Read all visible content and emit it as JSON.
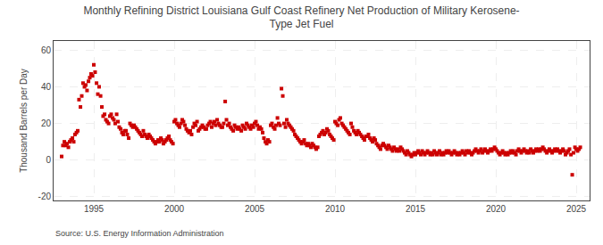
{
  "chart_data": {
    "type": "scatter",
    "title": "Monthly Refining District Louisiana Gulf Coast Refinery Net Production of Military Kerosene-\nType Jet Fuel",
    "ylabel": "Thousand Barrels per Day",
    "source": "Source: U.S. Energy Information Administration",
    "color": "#cc0000",
    "marker": "square",
    "grid": true,
    "xlim": [
      1992.5,
      2025.83
    ],
    "ylim": [
      -22,
      65
    ],
    "yticks": [
      -20,
      0,
      20,
      40,
      60
    ],
    "xticks": [
      1995,
      2000,
      2005,
      2010,
      2015,
      2020,
      2025
    ],
    "x": [
      1993.0,
      1993.08,
      1993.17,
      1993.25,
      1993.33,
      1993.42,
      1993.5,
      1993.58,
      1993.67,
      1993.75,
      1993.83,
      1993.92,
      1994.0,
      1994.08,
      1994.17,
      1994.25,
      1994.33,
      1994.42,
      1994.5,
      1994.58,
      1994.67,
      1994.75,
      1994.83,
      1994.92,
      1995.0,
      1995.08,
      1995.17,
      1995.25,
      1995.33,
      1995.42,
      1995.5,
      1995.58,
      1995.67,
      1995.75,
      1995.83,
      1995.92,
      1996.0,
      1996.08,
      1996.17,
      1996.25,
      1996.33,
      1996.42,
      1996.5,
      1996.58,
      1996.67,
      1996.75,
      1996.83,
      1996.92,
      1997.0,
      1997.08,
      1997.17,
      1997.25,
      1997.33,
      1997.42,
      1997.5,
      1997.58,
      1997.67,
      1997.75,
      1997.83,
      1997.92,
      1998.0,
      1998.08,
      1998.17,
      1998.25,
      1998.33,
      1998.42,
      1998.5,
      1998.58,
      1998.67,
      1998.75,
      1998.83,
      1998.92,
      1999.0,
      1999.08,
      1999.17,
      1999.25,
      1999.33,
      1999.42,
      1999.5,
      1999.58,
      1999.67,
      1999.75,
      1999.83,
      1999.92,
      2000.0,
      2000.08,
      2000.17,
      2000.25,
      2000.33,
      2000.42,
      2000.5,
      2000.58,
      2000.67,
      2000.75,
      2000.83,
      2000.92,
      2001.0,
      2001.08,
      2001.17,
      2001.25,
      2001.33,
      2001.42,
      2001.5,
      2001.58,
      2001.67,
      2001.75,
      2001.83,
      2001.92,
      2002.0,
      2002.08,
      2002.17,
      2002.25,
      2002.33,
      2002.42,
      2002.5,
      2002.58,
      2002.67,
      2002.75,
      2002.83,
      2002.92,
      2003.0,
      2003.08,
      2003.17,
      2003.25,
      2003.33,
      2003.42,
      2003.5,
      2003.58,
      2003.67,
      2003.75,
      2003.83,
      2003.92,
      2004.0,
      2004.08,
      2004.17,
      2004.25,
      2004.33,
      2004.42,
      2004.5,
      2004.58,
      2004.67,
      2004.75,
      2004.83,
      2004.92,
      2005.0,
      2005.08,
      2005.17,
      2005.25,
      2005.33,
      2005.42,
      2005.5,
      2005.58,
      2005.67,
      2005.75,
      2005.83,
      2005.92,
      2006.0,
      2006.08,
      2006.17,
      2006.25,
      2006.33,
      2006.42,
      2006.5,
      2006.58,
      2006.67,
      2006.75,
      2006.83,
      2006.92,
      2007.0,
      2007.08,
      2007.17,
      2007.25,
      2007.33,
      2007.42,
      2007.5,
      2007.58,
      2007.67,
      2007.75,
      2007.83,
      2007.92,
      2008.0,
      2008.08,
      2008.17,
      2008.25,
      2008.33,
      2008.42,
      2008.5,
      2008.58,
      2008.67,
      2008.75,
      2008.83,
      2008.92,
      2009.0,
      2009.08,
      2009.17,
      2009.25,
      2009.33,
      2009.42,
      2009.5,
      2009.58,
      2009.67,
      2009.75,
      2009.83,
      2009.92,
      2010.0,
      2010.08,
      2010.17,
      2010.25,
      2010.33,
      2010.42,
      2010.5,
      2010.58,
      2010.67,
      2010.75,
      2010.83,
      2010.92,
      2011.0,
      2011.08,
      2011.17,
      2011.25,
      2011.33,
      2011.42,
      2011.5,
      2011.58,
      2011.67,
      2011.75,
      2011.83,
      2011.92,
      2012.0,
      2012.08,
      2012.17,
      2012.25,
      2012.33,
      2012.42,
      2012.5,
      2012.58,
      2012.67,
      2012.75,
      2012.83,
      2012.92,
      2013.0,
      2013.08,
      2013.17,
      2013.25,
      2013.33,
      2013.42,
      2013.5,
      2013.58,
      2013.67,
      2013.75,
      2013.83,
      2013.92,
      2014.0,
      2014.08,
      2014.17,
      2014.25,
      2014.33,
      2014.42,
      2014.5,
      2014.58,
      2014.67,
      2014.75,
      2014.83,
      2014.92,
      2015.0,
      2015.08,
      2015.17,
      2015.25,
      2015.33,
      2015.42,
      2015.5,
      2015.58,
      2015.67,
      2015.75,
      2015.83,
      2015.92,
      2016.0,
      2016.08,
      2016.17,
      2016.25,
      2016.33,
      2016.42,
      2016.5,
      2016.58,
      2016.67,
      2016.75,
      2016.83,
      2016.92,
      2017.0,
      2017.08,
      2017.17,
      2017.25,
      2017.33,
      2017.42,
      2017.5,
      2017.58,
      2017.67,
      2017.75,
      2017.83,
      2017.92,
      2018.0,
      2018.08,
      2018.17,
      2018.25,
      2018.33,
      2018.42,
      2018.5,
      2018.58,
      2018.67,
      2018.75,
      2018.83,
      2018.92,
      2019.0,
      2019.08,
      2019.17,
      2019.25,
      2019.33,
      2019.42,
      2019.5,
      2019.58,
      2019.67,
      2019.75,
      2019.83,
      2019.92,
      2020.0,
      2020.08,
      2020.17,
      2020.25,
      2020.33,
      2020.42,
      2020.5,
      2020.58,
      2020.67,
      2020.75,
      2020.83,
      2020.92,
      2021.0,
      2021.08,
      2021.17,
      2021.25,
      2021.33,
      2021.42,
      2021.5,
      2021.58,
      2021.67,
      2021.75,
      2021.83,
      2021.92,
      2022.0,
      2022.08,
      2022.17,
      2022.25,
      2022.33,
      2022.42,
      2022.5,
      2022.58,
      2022.67,
      2022.75,
      2022.83,
      2022.92,
      2023.0,
      2023.08,
      2023.17,
      2023.25,
      2023.33,
      2023.42,
      2023.5,
      2023.58,
      2023.67,
      2023.75,
      2023.83,
      2023.92,
      2024.0,
      2024.08,
      2024.17,
      2024.25,
      2024.33,
      2024.42,
      2024.5,
      2024.58,
      2024.67,
      2024.75,
      2024.83,
      2024.92,
      2025.0,
      2025.08,
      2025.17,
      2025.25
    ],
    "values": [
      2,
      8,
      10,
      8,
      9,
      7,
      10,
      11,
      12,
      10,
      14,
      15,
      16,
      33,
      29,
      35,
      42,
      40,
      41,
      38,
      43,
      45,
      47,
      46,
      52,
      48,
      42,
      36,
      40,
      35,
      29,
      24,
      25,
      22,
      21,
      20,
      24,
      25,
      23,
      22,
      20,
      25,
      21,
      18,
      17,
      15,
      14,
      16,
      16,
      14,
      12,
      20,
      19,
      18,
      19,
      18,
      17,
      16,
      15,
      14,
      13,
      16,
      14,
      13,
      12,
      14,
      13,
      12,
      11,
      10,
      9,
      10,
      11,
      10,
      12,
      11,
      9,
      10,
      11,
      12,
      13,
      11,
      10,
      9,
      21,
      22,
      20,
      19,
      18,
      20,
      22,
      21,
      19,
      17,
      16,
      15,
      16,
      14,
      18,
      20,
      19,
      21,
      16,
      17,
      18,
      19,
      18,
      17,
      17,
      19,
      20,
      21,
      18,
      20,
      21,
      19,
      22,
      20,
      19,
      18,
      18,
      20,
      32,
      22,
      19,
      20,
      18,
      17,
      16,
      19,
      18,
      17,
      18,
      17,
      16,
      19,
      18,
      17,
      20,
      19,
      18,
      17,
      19,
      18,
      20,
      21,
      19,
      17,
      18,
      17,
      15,
      12,
      10,
      9,
      11,
      10,
      19,
      20,
      18,
      17,
      19,
      23,
      20,
      19,
      39,
      35,
      20,
      18,
      22,
      20,
      19,
      18,
      17,
      16,
      14,
      13,
      12,
      11,
      10,
      9,
      10,
      11,
      9,
      8,
      9,
      8,
      7,
      9,
      8,
      7,
      6,
      7,
      13,
      14,
      15,
      16,
      14,
      15,
      17,
      16,
      14,
      13,
      12,
      11,
      21,
      20,
      19,
      22,
      23,
      20,
      19,
      18,
      17,
      16,
      15,
      14,
      20,
      18,
      16,
      15,
      14,
      16,
      15,
      14,
      13,
      12,
      11,
      13,
      13,
      14,
      12,
      11,
      10,
      12,
      11,
      9,
      8,
      7,
      6,
      8,
      9,
      8,
      7,
      6,
      8,
      7,
      6,
      5,
      7,
      6,
      5,
      6,
      5,
      7,
      6,
      5,
      4,
      3,
      5,
      4,
      3,
      2,
      3,
      4,
      3,
      4,
      5,
      4,
      3,
      5,
      4,
      3,
      4,
      5,
      4,
      3,
      4,
      3,
      5,
      4,
      3,
      4,
      5,
      3,
      4,
      3,
      4,
      5,
      4,
      5,
      4,
      3,
      4,
      5,
      4,
      3,
      4,
      3,
      4,
      5,
      4,
      3,
      5,
      4,
      5,
      4,
      3,
      4,
      5,
      6,
      5,
      4,
      5,
      6,
      4,
      5,
      6,
      5,
      4,
      5,
      6,
      5,
      6,
      7,
      6,
      5,
      4,
      3,
      4,
      5,
      4,
      3,
      4,
      3,
      4,
      5,
      4,
      5,
      4,
      3,
      5,
      6,
      5,
      4,
      5,
      6,
      5,
      4,
      5,
      4,
      6,
      5,
      4,
      5,
      6,
      5,
      6,
      5,
      6,
      7,
      6,
      5,
      4,
      5,
      6,
      5,
      4,
      5,
      6,
      5,
      6,
      5,
      4,
      5,
      6,
      5,
      3,
      4,
      5,
      6,
      3,
      -8,
      4,
      7,
      6,
      5,
      6,
      7
    ]
  }
}
